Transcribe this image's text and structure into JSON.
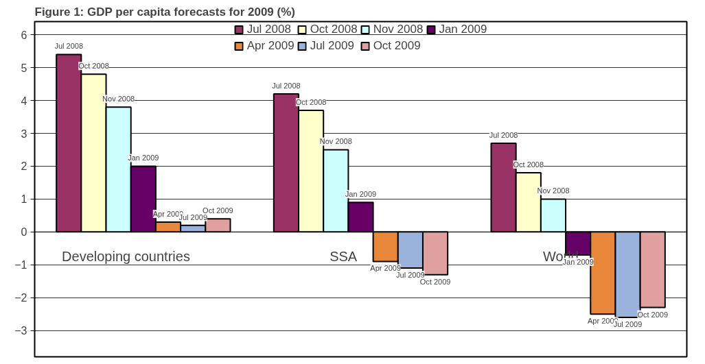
{
  "chart_data": {
    "type": "bar",
    "title": "Figure 1: GDP per capita forecasts for 2009 (%)",
    "categories": [
      "Developing countries",
      "SSA",
      "World"
    ],
    "series": [
      {
        "name": "Jul 2008",
        "color": "#993366",
        "values": [
          5.4,
          4.2,
          2.7
        ]
      },
      {
        "name": "Oct 2008",
        "color": "#ffffcc",
        "values": [
          4.8,
          3.7,
          1.8
        ]
      },
      {
        "name": "Nov 2008",
        "color": "#ccffff",
        "values": [
          3.8,
          2.5,
          1.0
        ]
      },
      {
        "name": "Jan 2009",
        "color": "#660066",
        "values": [
          2.0,
          0.9,
          -0.7
        ]
      },
      {
        "name": "Apr 2009",
        "color": "#e8873a",
        "values": [
          0.3,
          -0.9,
          -2.5
        ]
      },
      {
        "name": "Jul 2009",
        "color": "#99b3dd",
        "values": [
          0.2,
          -1.1,
          -2.6
        ]
      },
      {
        "name": "Oct 2009",
        "color": "#e0a0a0",
        "values": [
          0.4,
          -1.3,
          -2.3
        ]
      }
    ],
    "ylim": [
      -3.8,
      6.4
    ],
    "yticks": [
      -3,
      -2,
      -1,
      0,
      1,
      2,
      3,
      4,
      5,
      6
    ],
    "grid": "y",
    "legend": "top",
    "annotations": [
      "Jul 2008",
      "Oct 2008",
      "Nov 2008",
      "Jan 2009",
      "Apr 2009",
      "Jul 2009",
      "Oct 2009",
      "Jul 2008",
      "Oct 2008",
      "Nov 2008",
      "Jan 2009",
      "Apr 2009",
      "Jul 2009",
      "Oct 2009",
      "Jul 2008",
      "Oct 2008",
      "Nov 2008",
      "Jan 2009",
      "Apr 2009",
      "Jul 2009",
      "Oct 2009"
    ]
  }
}
